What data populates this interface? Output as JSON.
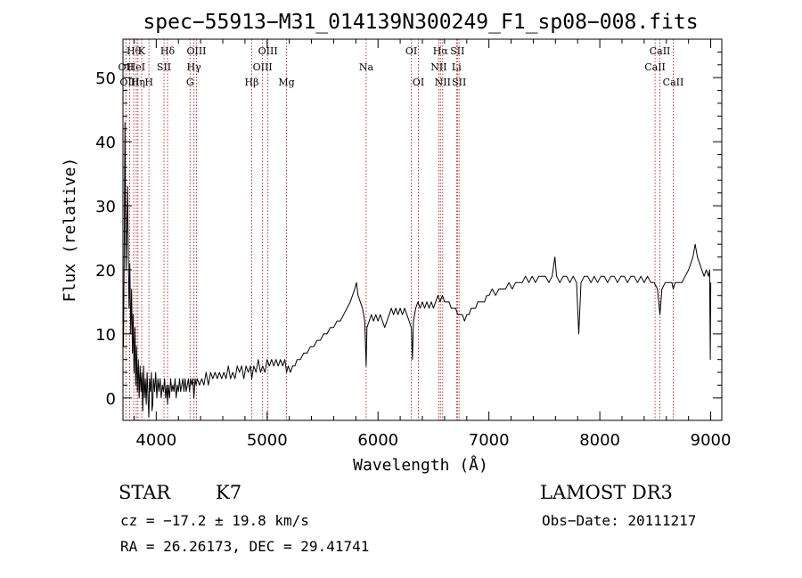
{
  "chart_data": {
    "type": "line",
    "title": "spec−55913−M31_014139N300249_F1_sp08−008.fits",
    "xlabel": "Wavelength (Å)",
    "ylabel": "Flux (relative)",
    "xlim": [
      3700,
      9100
    ],
    "ylim": [
      -3.5,
      56
    ],
    "xticks": [
      4000,
      5000,
      6000,
      7000,
      8000,
      9000
    ],
    "yticks": [
      0,
      10,
      20,
      30,
      40,
      50
    ],
    "grid": false,
    "line_color": "#000000",
    "marker_color": "#b22222",
    "spectrum": [
      [
        3705,
        8
      ],
      [
        3712,
        25
      ],
      [
        3718,
        43
      ],
      [
        3722,
        30
      ],
      [
        3728,
        20
      ],
      [
        3735,
        27
      ],
      [
        3742,
        33
      ],
      [
        3748,
        22
      ],
      [
        3755,
        14
      ],
      [
        3762,
        21
      ],
      [
        3770,
        10
      ],
      [
        3778,
        17
      ],
      [
        3785,
        7
      ],
      [
        3792,
        13
      ],
      [
        3800,
        4
      ],
      [
        3808,
        11
      ],
      [
        3815,
        2
      ],
      [
        3822,
        8
      ],
      [
        3830,
        1
      ],
      [
        3838,
        6
      ],
      [
        3846,
        0
      ],
      [
        3854,
        5
      ],
      [
        3862,
        1
      ],
      [
        3870,
        4
      ],
      [
        3878,
        -2
      ],
      [
        3886,
        5
      ],
      [
        3894,
        0
      ],
      [
        3902,
        3
      ],
      [
        3910,
        -1
      ],
      [
        3918,
        4
      ],
      [
        3926,
        0
      ],
      [
        3933,
        -3
      ],
      [
        3940,
        3
      ],
      [
        3948,
        1
      ],
      [
        3956,
        4
      ],
      [
        3962,
        -2
      ],
      [
        3968,
        -1
      ],
      [
        3975,
        3
      ],
      [
        3985,
        1
      ],
      [
        3995,
        4
      ],
      [
        4005,
        0
      ],
      [
        4015,
        3
      ],
      [
        4025,
        1
      ],
      [
        4035,
        3
      ],
      [
        4045,
        0
      ],
      [
        4055,
        2
      ],
      [
        4065,
        1
      ],
      [
        4075,
        3
      ],
      [
        4085,
        0
      ],
      [
        4095,
        2
      ],
      [
        4102,
        -1
      ],
      [
        4110,
        2
      ],
      [
        4120,
        0
      ],
      [
        4130,
        3
      ],
      [
        4140,
        1
      ],
      [
        4150,
        2
      ],
      [
        4160,
        1
      ],
      [
        4170,
        3
      ],
      [
        4180,
        0
      ],
      [
        4190,
        2
      ],
      [
        4200,
        1
      ],
      [
        4210,
        3
      ],
      [
        4220,
        1
      ],
      [
        4230,
        2
      ],
      [
        4240,
        3
      ],
      [
        4250,
        1
      ],
      [
        4260,
        3
      ],
      [
        4270,
        1
      ],
      [
        4280,
        2
      ],
      [
        4290,
        3
      ],
      [
        4300,
        1
      ],
      [
        4310,
        3
      ],
      [
        4320,
        2
      ],
      [
        4330,
        3
      ],
      [
        4340,
        0
      ],
      [
        4350,
        3
      ],
      [
        4360,
        2
      ],
      [
        4370,
        3
      ],
      [
        4390,
        2
      ],
      [
        4410,
        3
      ],
      [
        4430,
        2
      ],
      [
        4450,
        4
      ],
      [
        4470,
        2
      ],
      [
        4490,
        4
      ],
      [
        4510,
        3
      ],
      [
        4530,
        4
      ],
      [
        4550,
        3
      ],
      [
        4570,
        4
      ],
      [
        4590,
        3
      ],
      [
        4610,
        4
      ],
      [
        4630,
        3
      ],
      [
        4650,
        5
      ],
      [
        4670,
        3
      ],
      [
        4690,
        4
      ],
      [
        4710,
        3
      ],
      [
        4730,
        5
      ],
      [
        4750,
        4
      ],
      [
        4770,
        5
      ],
      [
        4790,
        3
      ],
      [
        4810,
        5
      ],
      [
        4830,
        4
      ],
      [
        4850,
        5
      ],
      [
        4861,
        3
      ],
      [
        4880,
        5
      ],
      [
        4900,
        4
      ],
      [
        4920,
        6
      ],
      [
        4940,
        4
      ],
      [
        4960,
        5
      ],
      [
        4980,
        4
      ],
      [
        5000,
        6
      ],
      [
        5020,
        5
      ],
      [
        5040,
        6
      ],
      [
        5060,
        5
      ],
      [
        5080,
        6
      ],
      [
        5100,
        5
      ],
      [
        5120,
        6
      ],
      [
        5140,
        5
      ],
      [
        5160,
        6
      ],
      [
        5175,
        4
      ],
      [
        5190,
        5
      ],
      [
        5210,
        4
      ],
      [
        5230,
        5
      ],
      [
        5250,
        5
      ],
      [
        5270,
        6
      ],
      [
        5300,
        6
      ],
      [
        5330,
        7
      ],
      [
        5360,
        7
      ],
      [
        5390,
        8
      ],
      [
        5420,
        8
      ],
      [
        5450,
        9
      ],
      [
        5480,
        9
      ],
      [
        5510,
        10
      ],
      [
        5540,
        10
      ],
      [
        5570,
        11
      ],
      [
        5600,
        11
      ],
      [
        5630,
        12
      ],
      [
        5660,
        12
      ],
      [
        5690,
        13
      ],
      [
        5720,
        14
      ],
      [
        5750,
        15
      ],
      [
        5770,
        16
      ],
      [
        5790,
        17
      ],
      [
        5805,
        18
      ],
      [
        5820,
        16
      ],
      [
        5840,
        15
      ],
      [
        5860,
        14
      ],
      [
        5880,
        12
      ],
      [
        5893,
        5
      ],
      [
        5900,
        11
      ],
      [
        5920,
        12
      ],
      [
        5940,
        13
      ],
      [
        5960,
        12
      ],
      [
        5980,
        13
      ],
      [
        6000,
        12
      ],
      [
        6020,
        13
      ],
      [
        6040,
        12
      ],
      [
        6060,
        11
      ],
      [
        6080,
        12
      ],
      [
        6100,
        13
      ],
      [
        6120,
        14
      ],
      [
        6140,
        13
      ],
      [
        6160,
        14
      ],
      [
        6180,
        13
      ],
      [
        6200,
        14
      ],
      [
        6220,
        13
      ],
      [
        6240,
        14
      ],
      [
        6260,
        13
      ],
      [
        6280,
        12
      ],
      [
        6300,
        11
      ],
      [
        6310,
        6
      ],
      [
        6320,
        12
      ],
      [
        6340,
        14
      ],
      [
        6360,
        15
      ],
      [
        6380,
        14
      ],
      [
        6400,
        15
      ],
      [
        6420,
        14
      ],
      [
        6440,
        15
      ],
      [
        6460,
        14
      ],
      [
        6480,
        15
      ],
      [
        6500,
        14
      ],
      [
        6520,
        15
      ],
      [
        6540,
        16
      ],
      [
        6560,
        15
      ],
      [
        6580,
        16
      ],
      [
        6600,
        15
      ],
      [
        6620,
        15
      ],
      [
        6640,
        15
      ],
      [
        6660,
        14
      ],
      [
        6680,
        14
      ],
      [
        6700,
        14
      ],
      [
        6720,
        13
      ],
      [
        6740,
        13
      ],
      [
        6760,
        13
      ],
      [
        6780,
        12
      ],
      [
        6800,
        13
      ],
      [
        6820,
        13
      ],
      [
        6840,
        14
      ],
      [
        6860,
        14
      ],
      [
        6880,
        14
      ],
      [
        6900,
        15
      ],
      [
        6920,
        15
      ],
      [
        6940,
        15
      ],
      [
        6960,
        15
      ],
      [
        6980,
        16
      ],
      [
        7000,
        16
      ],
      [
        7030,
        17
      ],
      [
        7060,
        16
      ],
      [
        7090,
        17
      ],
      [
        7120,
        17
      ],
      [
        7150,
        17
      ],
      [
        7180,
        18
      ],
      [
        7210,
        17
      ],
      [
        7240,
        18
      ],
      [
        7270,
        18
      ],
      [
        7300,
        18
      ],
      [
        7330,
        19
      ],
      [
        7360,
        18
      ],
      [
        7390,
        19
      ],
      [
        7420,
        18
      ],
      [
        7450,
        19
      ],
      [
        7480,
        19
      ],
      [
        7510,
        19
      ],
      [
        7540,
        18
      ],
      [
        7570,
        19
      ],
      [
        7595,
        22
      ],
      [
        7610,
        19
      ],
      [
        7640,
        18
      ],
      [
        7670,
        19
      ],
      [
        7700,
        19
      ],
      [
        7730,
        18
      ],
      [
        7760,
        19
      ],
      [
        7790,
        18
      ],
      [
        7810,
        10
      ],
      [
        7830,
        18
      ],
      [
        7860,
        19
      ],
      [
        7890,
        19
      ],
      [
        7920,
        18
      ],
      [
        7950,
        19
      ],
      [
        7980,
        18
      ],
      [
        8010,
        19
      ],
      [
        8040,
        19
      ],
      [
        8070,
        18
      ],
      [
        8100,
        19
      ],
      [
        8130,
        19
      ],
      [
        8160,
        18
      ],
      [
        8190,
        19
      ],
      [
        8220,
        19
      ],
      [
        8250,
        18
      ],
      [
        8280,
        19
      ],
      [
        8310,
        19
      ],
      [
        8340,
        18
      ],
      [
        8370,
        19
      ],
      [
        8400,
        18
      ],
      [
        8430,
        19
      ],
      [
        8460,
        18
      ],
      [
        8490,
        18
      ],
      [
        8520,
        17
      ],
      [
        8542,
        13
      ],
      [
        8560,
        17
      ],
      [
        8590,
        18
      ],
      [
        8620,
        18
      ],
      [
        8650,
        18
      ],
      [
        8662,
        17
      ],
      [
        8680,
        18
      ],
      [
        8710,
        18
      ],
      [
        8740,
        18
      ],
      [
        8770,
        19
      ],
      [
        8800,
        20
      ],
      [
        8820,
        21
      ],
      [
        8840,
        22
      ],
      [
        8860,
        24
      ],
      [
        8880,
        22
      ],
      [
        8900,
        21
      ],
      [
        8920,
        20
      ],
      [
        8940,
        19
      ],
      [
        8960,
        20
      ],
      [
        8980,
        19
      ],
      [
        8990,
        20
      ],
      [
        8996,
        6
      ],
      [
        9000,
        18
      ]
    ],
    "line_markers": [
      {
        "label": "Hθ",
        "x": 3797,
        "row": 0
      },
      {
        "label": "K",
        "x": 3869,
        "row": 0
      },
      {
        "label": "Hδ",
        "x": 4102,
        "row": 0
      },
      {
        "label": "OIII",
        "x": 4363,
        "row": 0
      },
      {
        "label": "OIII",
        "x": 5007,
        "row": 0
      },
      {
        "label": "OI",
        "x": 6300,
        "row": 0
      },
      {
        "label": "Hα",
        "x": 6563,
        "row": 0
      },
      {
        "label": "SII",
        "x": 6716,
        "row": 0
      },
      {
        "label": "CaII",
        "x": 8542,
        "row": 0
      },
      {
        "label": "OII",
        "x": 3727,
        "row": 1
      },
      {
        "label": "HeI",
        "x": 3820,
        "row": 1
      },
      {
        "label": "SII",
        "x": 4070,
        "row": 1
      },
      {
        "label": "Hγ",
        "x": 4340,
        "row": 1
      },
      {
        "label": "OIII",
        "x": 4959,
        "row": 1
      },
      {
        "label": "NII",
        "x": 6548,
        "row": 1
      },
      {
        "label": "Li",
        "x": 6708,
        "row": 1
      },
      {
        "label": "CaII",
        "x": 8498,
        "row": 1
      },
      {
        "label": "OIII",
        "x": 3760,
        "row": 2
      },
      {
        "label": "Hη",
        "x": 3835,
        "row": 2
      },
      {
        "label": "H",
        "x": 3934,
        "row": 2
      },
      {
        "label": "G",
        "x": 4305,
        "row": 2
      },
      {
        "label": "Hβ",
        "x": 4861,
        "row": 2
      },
      {
        "label": "Mg",
        "x": 5175,
        "row": 2
      },
      {
        "label": "Na",
        "x": 5893,
        "row": 1
      },
      {
        "label": "OI",
        "x": 6364,
        "row": 2
      },
      {
        "label": "NII",
        "x": 6583,
        "row": 2
      },
      {
        "label": "SII",
        "x": 6731,
        "row": 2
      },
      {
        "label": "CaII",
        "x": 8662,
        "row": 2
      }
    ]
  },
  "info": {
    "object_class": "STAR",
    "subclass": "K7",
    "survey": "LAMOST DR3",
    "cz": "cz = −17.2 ± 19.8 km/s",
    "obs_date": "Obs−Date: 20111217",
    "coords": "RA =  26.26173, DEC =  29.41741"
  }
}
